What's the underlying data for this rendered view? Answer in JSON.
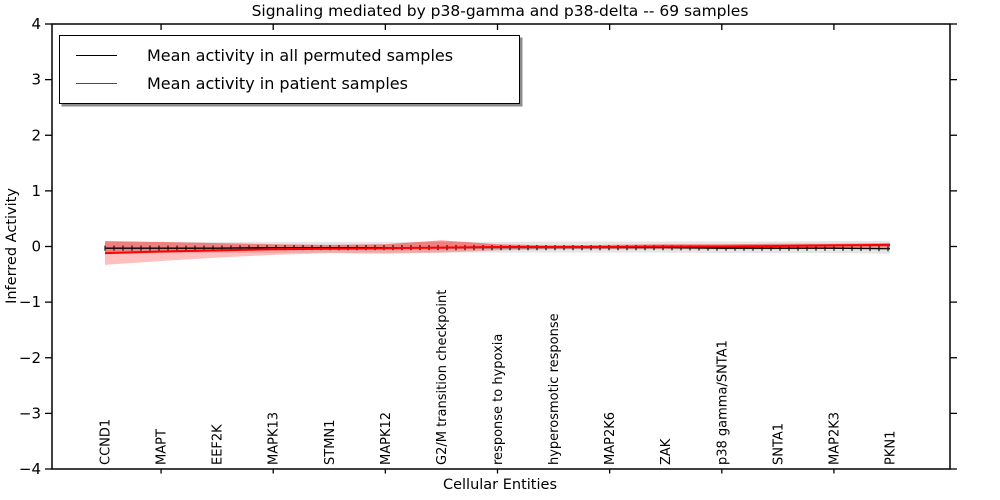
{
  "chart_data": {
    "type": "line",
    "title": "Signaling mediated by p38-gamma and p38-delta -- 69 samples",
    "xlabel": "Cellular Entities",
    "ylabel": "Inferred Activity",
    "ylim": [
      -4,
      4
    ],
    "yticks": [
      4,
      3,
      2,
      1,
      0,
      -1,
      -2,
      -3,
      -4
    ],
    "ytick_labels": [
      "4",
      "3",
      "2",
      "1",
      "0",
      "−1",
      "−2",
      "−3",
      "−4"
    ],
    "grid": false,
    "legend_position": "upper left",
    "categories": [
      "CCND1",
      "MAPT",
      "EEF2K",
      "MAPK13",
      "STMN1",
      "MAPK12",
      "G2/M transition checkpoint",
      "response to hypoxia",
      "hyperosmotic response",
      "MAP2K6",
      "ZAK",
      "p38 gamma/SNTA1",
      "SNTA1",
      "MAP2K3",
      "PKN1"
    ],
    "x_major_tick_indices": [
      1,
      3,
      5,
      7,
      9,
      11,
      13
    ],
    "series": [
      {
        "name": "Mean activity in all permuted samples",
        "color": "#000000",
        "values": [
          -0.03,
          -0.03,
          -0.03,
          -0.02,
          -0.02,
          -0.02,
          -0.02,
          -0.02,
          -0.02,
          -0.02,
          -0.02,
          -0.03,
          -0.03,
          -0.03,
          -0.04
        ],
        "band_upper": [
          0.08,
          0.08,
          0.08,
          0.08,
          0.08,
          0.08,
          0.08,
          0.08,
          0.09,
          0.09,
          0.09,
          0.09,
          0.09,
          0.1,
          0.1
        ],
        "band_lower": [
          -0.12,
          -0.12,
          -0.12,
          -0.12,
          -0.11,
          -0.11,
          -0.11,
          -0.11,
          -0.11,
          -0.11,
          -0.11,
          -0.12,
          -0.12,
          -0.12,
          -0.13
        ],
        "band_color": "#000000",
        "band_opacity": 0.1
      },
      {
        "name": "Mean activity in patient samples",
        "color": "#ff0000",
        "values": [
          -0.12,
          -0.09,
          -0.07,
          -0.05,
          -0.04,
          -0.03,
          -0.02,
          -0.01,
          -0.01,
          -0.01,
          0.0,
          0.0,
          0.01,
          0.02,
          0.03
        ],
        "band_upper": [
          0.1,
          0.08,
          0.06,
          0.04,
          0.03,
          0.04,
          0.11,
          0.04,
          0.02,
          0.03,
          0.04,
          0.04,
          0.05,
          0.05,
          0.06
        ],
        "band_inner_lower": [
          -0.13,
          -0.11,
          -0.09,
          -0.07,
          -0.06,
          -0.06,
          -0.05,
          -0.03,
          -0.03,
          -0.03,
          -0.03,
          -0.03,
          -0.03,
          -0.02,
          -0.02
        ],
        "band_outer_lower": [
          -0.33,
          -0.26,
          -0.2,
          -0.15,
          -0.12,
          -0.13,
          -0.11,
          -0.07,
          -0.05,
          -0.05,
          -0.05,
          -0.05,
          -0.05,
          -0.04,
          -0.04
        ],
        "band_color": "#ff0000",
        "band_opacity": 0.25
      }
    ]
  }
}
